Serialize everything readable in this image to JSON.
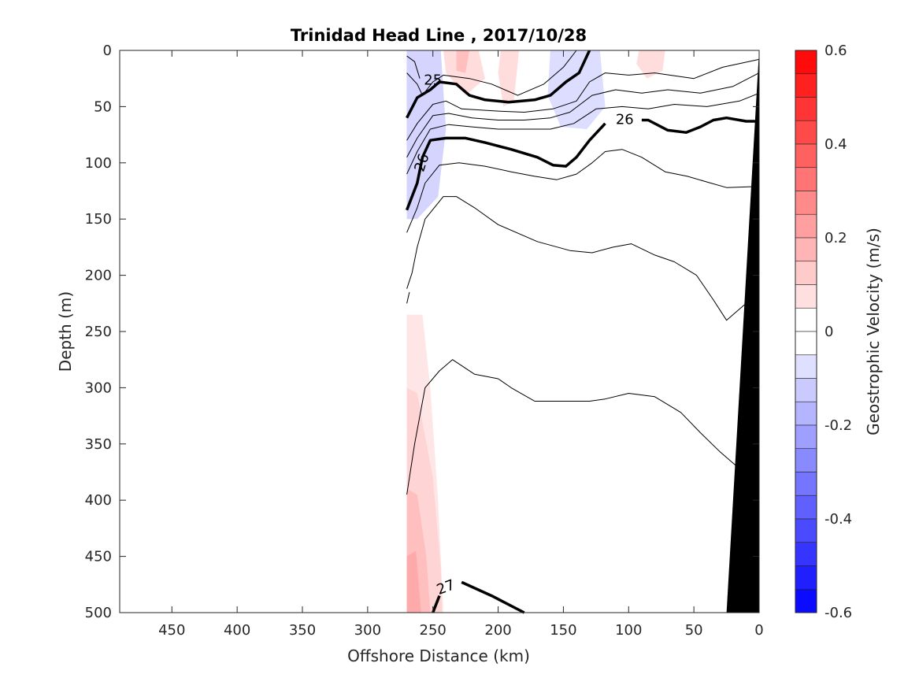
{
  "chart_data": {
    "type": "contour",
    "title": "Trinidad Head Line , 2017/10/28",
    "xlabel": "Offshore Distance (km)",
    "ylabel": "Depth (m)",
    "xlim": [
      490,
      0
    ],
    "ylim": [
      0,
      500
    ],
    "x_reversed": true,
    "y_reversed": true,
    "xticks": [
      450,
      400,
      350,
      300,
      250,
      200,
      150,
      100,
      50,
      0
    ],
    "yticks": [
      0,
      50,
      100,
      150,
      200,
      250,
      300,
      350,
      400,
      450,
      500
    ],
    "colorbar": {
      "label": "Geostrophic Velocity (m/s)",
      "range": [
        -0.6,
        0.6
      ],
      "ticks": [
        0.6,
        0.4,
        0.2,
        0,
        -0.2,
        -0.4,
        -0.6
      ],
      "levels": 24,
      "negative_color": "#0000ff",
      "positive_color": "#ff0000",
      "neutral_color": "#ffffff"
    },
    "velocity_patches": [
      {
        "value": -0.5,
        "points": [
          [
            270,
            0
          ],
          [
            262,
            0
          ],
          [
            258,
            40
          ],
          [
            270,
            48
          ]
        ]
      },
      {
        "value": -0.35,
        "points": [
          [
            270,
            0
          ],
          [
            252,
            0
          ],
          [
            250,
            60
          ],
          [
            262,
            90
          ],
          [
            270,
            95
          ]
        ]
      },
      {
        "value": -0.2,
        "points": [
          [
            270,
            0
          ],
          [
            248,
            0
          ],
          [
            245,
            60
          ],
          [
            250,
            110
          ],
          [
            262,
            140
          ],
          [
            270,
            145
          ]
        ]
      },
      {
        "value": -0.1,
        "points": [
          [
            270,
            0
          ],
          [
            244,
            0
          ],
          [
            240,
            70
          ],
          [
            246,
            130
          ],
          [
            262,
            150
          ],
          [
            270,
            150
          ]
        ]
      },
      {
        "value": -0.35,
        "points": [
          [
            148,
            0
          ],
          [
            140,
            0
          ],
          [
            142,
            30
          ],
          [
            146,
            45
          ]
        ]
      },
      {
        "value": -0.15,
        "points": [
          [
            152,
            0
          ],
          [
            128,
            0
          ],
          [
            126,
            40
          ],
          [
            140,
            55
          ],
          [
            152,
            40
          ]
        ]
      },
      {
        "value": -0.08,
        "points": [
          [
            160,
            0
          ],
          [
            122,
            0
          ],
          [
            118,
            50
          ],
          [
            132,
            70
          ],
          [
            152,
            68
          ],
          [
            162,
            40
          ]
        ]
      },
      {
        "value": 0.08,
        "points": [
          [
            242,
            0
          ],
          [
            215,
            0
          ],
          [
            210,
            25
          ],
          [
            225,
            40
          ],
          [
            240,
            20
          ]
        ]
      },
      {
        "value": 0.15,
        "points": [
          [
            232,
            0
          ],
          [
            222,
            0
          ],
          [
            225,
            20
          ],
          [
            232,
            18
          ]
        ]
      },
      {
        "value": 0.08,
        "points": [
          [
            198,
            0
          ],
          [
            184,
            0
          ],
          [
            188,
            45
          ],
          [
            196,
            50
          ],
          [
            200,
            20
          ]
        ]
      },
      {
        "value": 0.08,
        "points": [
          [
            92,
            0
          ],
          [
            72,
            0
          ],
          [
            74,
            18
          ],
          [
            86,
            25
          ],
          [
            94,
            12
          ]
        ]
      },
      {
        "value": 0.06,
        "points": [
          [
            270,
            235
          ],
          [
            258,
            235
          ],
          [
            252,
            300
          ],
          [
            246,
            400
          ],
          [
            242,
            500
          ],
          [
            270,
            500
          ]
        ]
      },
      {
        "value": 0.1,
        "points": [
          [
            270,
            300
          ],
          [
            262,
            305
          ],
          [
            250,
            380
          ],
          [
            244,
            460
          ],
          [
            243,
            500
          ],
          [
            270,
            500
          ]
        ]
      },
      {
        "value": 0.15,
        "points": [
          [
            270,
            390
          ],
          [
            262,
            395
          ],
          [
            255,
            450
          ],
          [
            252,
            500
          ],
          [
            270,
            500
          ]
        ]
      },
      {
        "value": 0.2,
        "points": [
          [
            270,
            450
          ],
          [
            263,
            445
          ],
          [
            259,
            500
          ],
          [
            270,
            500
          ]
        ]
      }
    ],
    "isopycnals": [
      {
        "label": "",
        "bold": false,
        "points": [
          [
            270,
            5
          ],
          [
            264,
            10
          ],
          [
            260,
            25
          ]
        ]
      },
      {
        "label": "",
        "bold": false,
        "points": [
          [
            270,
            20
          ],
          [
            262,
            30
          ],
          [
            258,
            40
          ],
          [
            250,
            28
          ],
          [
            242,
            22
          ],
          [
            222,
            25
          ],
          [
            205,
            30
          ],
          [
            185,
            40
          ],
          [
            165,
            30
          ],
          [
            150,
            15
          ],
          [
            140,
            0
          ]
        ]
      },
      {
        "label": "25",
        "bold": true,
        "label_at": [
          250,
          27
        ],
        "label_angle": 0,
        "points": [
          [
            270,
            60
          ],
          [
            262,
            42
          ],
          [
            252,
            35
          ],
          [
            245,
            28
          ],
          [
            232,
            30
          ],
          [
            222,
            40
          ],
          [
            210,
            44
          ],
          [
            192,
            46
          ],
          [
            172,
            44
          ],
          [
            160,
            40
          ],
          [
            148,
            28
          ],
          [
            138,
            20
          ],
          [
            130,
            0
          ]
        ]
      },
      {
        "label": "",
        "bold": false,
        "points": [
          [
            270,
            80
          ],
          [
            262,
            65
          ],
          [
            250,
            48
          ],
          [
            240,
            45
          ],
          [
            228,
            52
          ],
          [
            200,
            54
          ],
          [
            180,
            55
          ],
          [
            158,
            52
          ],
          [
            140,
            45
          ],
          [
            130,
            28
          ],
          [
            118,
            20
          ],
          [
            100,
            22
          ],
          [
            80,
            20
          ],
          [
            50,
            25
          ],
          [
            28,
            15
          ],
          [
            0,
            8
          ]
        ]
      },
      {
        "label": "",
        "bold": false,
        "points": [
          [
            270,
            95
          ],
          [
            262,
            78
          ],
          [
            250,
            58
          ],
          [
            238,
            56
          ],
          [
            220,
            60
          ],
          [
            200,
            62
          ],
          [
            180,
            62
          ],
          [
            160,
            60
          ],
          [
            145,
            55
          ],
          [
            128,
            40
          ],
          [
            110,
            35
          ],
          [
            90,
            38
          ],
          [
            70,
            35
          ],
          [
            45,
            38
          ],
          [
            20,
            32
          ],
          [
            0,
            20
          ]
        ]
      },
      {
        "label": "",
        "bold": false,
        "points": [
          [
            270,
            110
          ],
          [
            262,
            90
          ],
          [
            252,
            70
          ],
          [
            238,
            66
          ],
          [
            220,
            68
          ],
          [
            200,
            70
          ],
          [
            180,
            70
          ],
          [
            160,
            70
          ],
          [
            142,
            65
          ],
          [
            125,
            52
          ],
          [
            105,
            50
          ],
          [
            85,
            52
          ],
          [
            65,
            48
          ],
          [
            40,
            50
          ],
          [
            15,
            45
          ],
          [
            0,
            38
          ]
        ]
      },
      {
        "label": "26",
        "bold": true,
        "label_at": [
          258,
          100
        ],
        "label_angle": -72,
        "points": [
          [
            270,
            142
          ],
          [
            262,
            118
          ],
          [
            258,
            95
          ],
          [
            252,
            80
          ],
          [
            240,
            78
          ],
          [
            225,
            78
          ],
          [
            210,
            82
          ],
          [
            190,
            88
          ],
          [
            170,
            95
          ],
          [
            158,
            102
          ],
          [
            148,
            103
          ],
          [
            140,
            95
          ],
          [
            130,
            80
          ],
          [
            118,
            65
          ]
        ]
      },
      {
        "label": "26",
        "bold": true,
        "label_at": [
          103,
          62
        ],
        "label_angle": 0,
        "points": [
          [
            90,
            62
          ],
          [
            85,
            62
          ],
          [
            70,
            71
          ],
          [
            56,
            73
          ],
          [
            45,
            68
          ],
          [
            35,
            62
          ],
          [
            25,
            60
          ],
          [
            10,
            63
          ],
          [
            0,
            63
          ]
        ]
      },
      {
        "label": "",
        "bold": false,
        "points": [
          [
            270,
            162
          ],
          [
            262,
            140
          ],
          [
            256,
            118
          ],
          [
            245,
            102
          ],
          [
            230,
            100
          ],
          [
            210,
            103
          ],
          [
            190,
            108
          ],
          [
            172,
            112
          ],
          [
            155,
            115
          ],
          [
            140,
            110
          ],
          [
            128,
            100
          ],
          [
            118,
            90
          ],
          [
            105,
            88
          ],
          [
            90,
            95
          ],
          [
            72,
            108
          ],
          [
            55,
            112
          ],
          [
            40,
            117
          ],
          [
            25,
            122
          ],
          [
            0,
            121
          ]
        ]
      },
      {
        "label": "",
        "bold": false,
        "points": [
          [
            270,
            212
          ],
          [
            266,
            198
          ],
          [
            262,
            175
          ],
          [
            256,
            150
          ],
          [
            242,
            130
          ],
          [
            232,
            130
          ],
          [
            218,
            140
          ],
          [
            200,
            155
          ],
          [
            170,
            170
          ],
          [
            145,
            178
          ],
          [
            128,
            180
          ],
          [
            112,
            175
          ],
          [
            98,
            172
          ],
          [
            80,
            182
          ],
          [
            65,
            188
          ],
          [
            48,
            200
          ],
          [
            35,
            222
          ],
          [
            25,
            240
          ],
          [
            10,
            225
          ],
          [
            0,
            210
          ]
        ]
      },
      {
        "label": "",
        "bold": false,
        "points": [
          [
            270,
            225
          ],
          [
            268,
            215
          ]
        ]
      },
      {
        "label": "",
        "bold": false,
        "points": [
          [
            270,
            395
          ],
          [
            264,
            350
          ],
          [
            256,
            300
          ],
          [
            245,
            285
          ],
          [
            235,
            275
          ],
          [
            218,
            288
          ],
          [
            200,
            292
          ],
          [
            190,
            300
          ],
          [
            172,
            312
          ],
          [
            150,
            312
          ],
          [
            130,
            312
          ],
          [
            118,
            310
          ],
          [
            100,
            305
          ],
          [
            80,
            308
          ],
          [
            60,
            322
          ],
          [
            45,
            340
          ],
          [
            30,
            357
          ],
          [
            15,
            372
          ],
          [
            0,
            380
          ]
        ]
      },
      {
        "label": "27",
        "bold": true,
        "label_at": [
          240,
          478
        ],
        "label_angle": -20,
        "points": [
          [
            250,
            500
          ],
          [
            245,
            485
          ]
        ],
        "extra": [
          [
            228,
            473
          ],
          [
            205,
            485
          ],
          [
            180,
            500
          ]
        ]
      }
    ],
    "bathymetry": [
      [
        0,
        0
      ],
      [
        25,
        500
      ],
      [
        0,
        500
      ]
    ]
  }
}
